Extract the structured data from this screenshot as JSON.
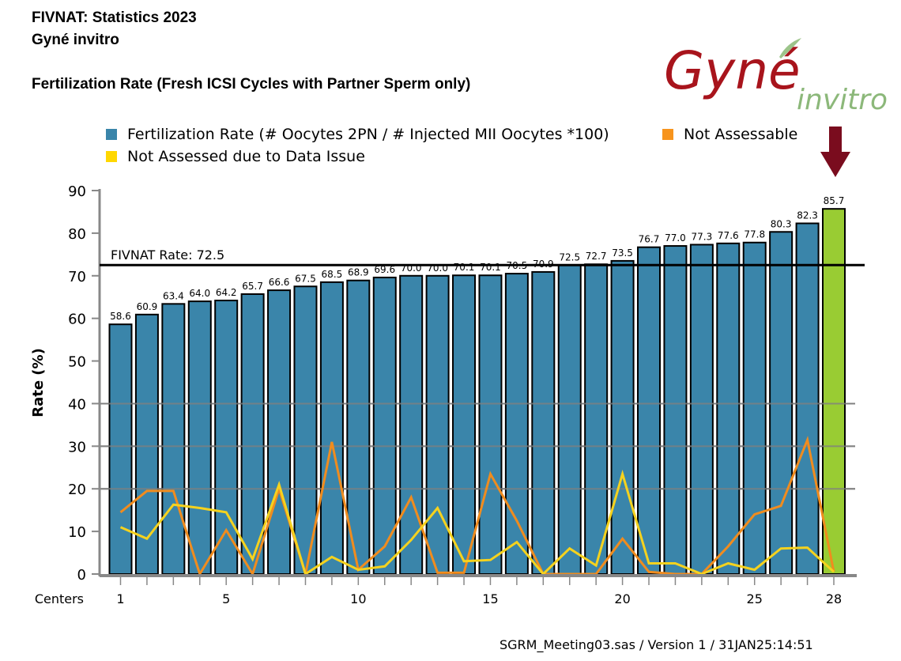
{
  "header": {
    "title": "FIVNAT: Statistics 2023",
    "center_name": "Gyné invitro",
    "chart_title": "Fertilization Rate (Fresh ICSI Cycles with Partner Sperm only)"
  },
  "logo": {
    "main": "Gyné",
    "sub": "invitro",
    "main_color": "#a8141c",
    "sub_color": "#8cb87a"
  },
  "arrow": {
    "color": "#7a0c1e",
    "points_to_center": 28
  },
  "footer": {
    "text": "SGRM_Meeting03.sas / Version 1 / 31JAN25:14:51"
  },
  "colors": {
    "bar": "#3a85aa",
    "highlight_bar": "#99cc33",
    "orange": "#f08c1e",
    "yellow": "#f5d21e",
    "grid": "#808080"
  },
  "chart_data": {
    "type": "bar",
    "title": "Fertilization Rate (Fresh ICSI Cycles with Partner Sperm only)",
    "xlabel": "Centers",
    "ylabel": "Rate (%)",
    "ylim": [
      0,
      90
    ],
    "yticks": [
      0,
      10,
      20,
      30,
      40,
      50,
      60,
      70,
      80,
      90
    ],
    "xtick_labels": [
      "1",
      "5",
      "10",
      "15",
      "20",
      "25",
      "28"
    ],
    "xtick_positions": [
      1,
      5,
      10,
      15,
      20,
      25,
      28
    ],
    "grid": "horizontal at 20, 30, 40",
    "legend_position": "top",
    "legend": [
      {
        "label": "Fertilization Rate (# Oocytes 2PN / # Injected MII Oocytes *100)",
        "color": "#3a85aa"
      },
      {
        "label": "Not Assessable",
        "color": "#f7941d"
      },
      {
        "label": "Not Assessed due to Data Issue",
        "color": "#ffd700"
      }
    ],
    "reference_line": {
      "label": "FIVNAT Rate: 72.5",
      "value": 72.5
    },
    "highlight_center": 28,
    "categories": [
      1,
      2,
      3,
      4,
      5,
      6,
      7,
      8,
      9,
      10,
      11,
      12,
      13,
      14,
      15,
      16,
      17,
      18,
      19,
      20,
      21,
      22,
      23,
      24,
      25,
      26,
      27,
      28
    ],
    "series": [
      {
        "name": "Fertilization Rate (# Oocytes 2PN / # Injected MII Oocytes *100)",
        "type": "bar",
        "values": [
          58.6,
          60.9,
          63.4,
          64.0,
          64.2,
          65.7,
          66.6,
          67.5,
          68.5,
          68.9,
          69.6,
          70.0,
          70.0,
          70.1,
          70.1,
          70.5,
          70.9,
          72.5,
          72.7,
          73.5,
          76.7,
          77.0,
          77.3,
          77.6,
          77.8,
          80.3,
          82.3,
          85.7
        ],
        "labels": [
          "58.6",
          "60.9",
          "63.4",
          "64.0",
          "64.2",
          "65.7",
          "66.6",
          "67.5",
          "68.5",
          "68.9",
          "69.6",
          "70.0",
          "70.0",
          "70.1",
          "70.1",
          "70.5",
          "70.9",
          "72.5",
          "72.7",
          "73.5",
          "76.7",
          "77.0",
          "77.3",
          "77.6",
          "77.8",
          "80.3",
          "82.3",
          "85.7"
        ]
      },
      {
        "name": "Not Assessable",
        "type": "line",
        "values": [
          14.5,
          19.5,
          19.5,
          0,
          10.3,
          0,
          20,
          0,
          31,
          1,
          6.5,
          18,
          0.3,
          0.3,
          23.5,
          12.5,
          0,
          0,
          0,
          8.3,
          0.5,
          0,
          0,
          6.5,
          14,
          16,
          31.5,
          0.5
        ]
      },
      {
        "name": "Not Assessed due to Data Issue",
        "type": "line",
        "values": [
          11,
          8.3,
          16.3,
          15.5,
          14.5,
          3.5,
          21,
          0,
          4,
          1,
          1.8,
          8,
          15.5,
          3,
          3.3,
          7.5,
          0,
          6,
          2,
          23.5,
          2.5,
          2.5,
          0,
          2.5,
          1,
          6,
          6.2,
          0.5
        ]
      }
    ]
  }
}
